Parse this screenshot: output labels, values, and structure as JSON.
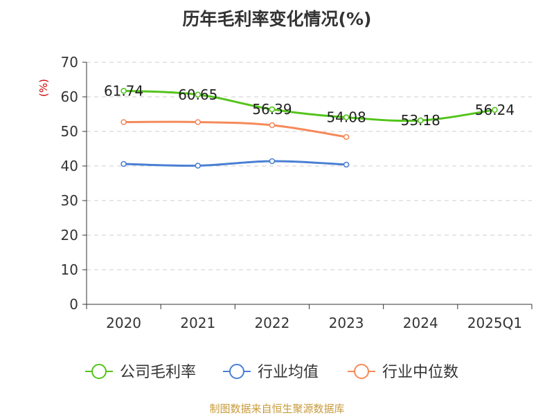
{
  "chart_data": {
    "type": "line",
    "title": "历年毛利率变化情况(%)",
    "ylabel": "(%)",
    "xlabel": "",
    "ylim": [
      0,
      70
    ],
    "yticks": [
      0,
      10,
      20,
      30,
      40,
      50,
      60,
      70
    ],
    "grid": true,
    "legend_position": "bottom",
    "categories": [
      "2020",
      "2021",
      "2022",
      "2023",
      "2024",
      "2025Q1"
    ],
    "series": [
      {
        "name": "公司毛利率",
        "color": "#52c41a",
        "values": [
          61.74,
          60.65,
          56.39,
          54.08,
          53.18,
          56.24
        ],
        "show_labels": true
      },
      {
        "name": "行业均值",
        "color": "#4a7fd4",
        "values": [
          40.6,
          40.1,
          41.4,
          40.4,
          null,
          null
        ],
        "show_labels": false
      },
      {
        "name": "行业中位数",
        "color": "#f5895a",
        "values": [
          52.7,
          52.7,
          51.8,
          48.4,
          null,
          null
        ],
        "show_labels": false
      }
    ]
  },
  "source": "制图数据来自恒生聚源数据库"
}
